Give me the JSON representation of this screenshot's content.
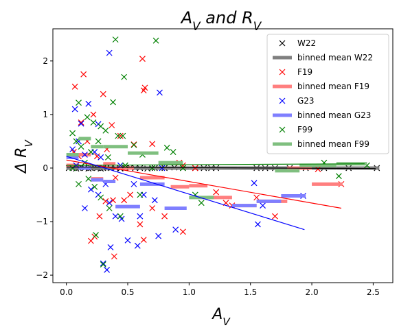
{
  "chart_data": {
    "type": "scatter",
    "title": "A_V and R_V",
    "xlabel": "A_V",
    "ylabel": "Δ R_V",
    "xlim": [
      -0.11,
      2.66
    ],
    "ylim": [
      -2.14,
      2.6
    ],
    "xticks": [
      0.0,
      0.5,
      1.0,
      1.5,
      2.0,
      2.5
    ],
    "xtick_labels": [
      "0.0",
      "0.5",
      "1.0",
      "1.5",
      "2.0",
      "2.5"
    ],
    "yticks": [
      -2,
      -1,
      0,
      1,
      2
    ],
    "ytick_labels": [
      "−2",
      "−1",
      "0",
      "1",
      "2"
    ],
    "legend_position": "upper right",
    "series": [
      {
        "name": "W22",
        "color": "#000000",
        "marker": "x",
        "points": [
          [
            0.02,
            0.0
          ],
          [
            0.05,
            0.01
          ],
          [
            0.08,
            -0.01
          ],
          [
            0.1,
            0.0
          ],
          [
            0.12,
            0.02
          ],
          [
            0.15,
            0.0
          ],
          [
            0.18,
            -0.01
          ],
          [
            0.2,
            0.0
          ],
          [
            0.23,
            0.01
          ],
          [
            0.25,
            0.0
          ],
          [
            0.28,
            -0.01
          ],
          [
            0.3,
            0.0
          ],
          [
            0.33,
            0.01
          ],
          [
            0.36,
            0.0
          ],
          [
            0.4,
            0.0
          ],
          [
            0.44,
            -0.01
          ],
          [
            0.48,
            0.0
          ],
          [
            0.52,
            0.01
          ],
          [
            0.56,
            0.0
          ],
          [
            0.6,
            0.0
          ],
          [
            0.66,
            -0.01
          ],
          [
            0.72,
            0.0
          ],
          [
            0.8,
            0.0
          ],
          [
            0.88,
            0.01
          ],
          [
            0.95,
            0.0
          ],
          [
            1.05,
            0.0
          ],
          [
            1.12,
            0.0
          ],
          [
            1.18,
            0.0
          ],
          [
            1.22,
            0.0
          ],
          [
            1.55,
            0.0
          ],
          [
            1.62,
            0.0
          ],
          [
            1.7,
            0.0
          ],
          [
            1.82,
            0.0
          ],
          [
            1.95,
            0.0
          ],
          [
            2.1,
            0.0
          ],
          [
            2.3,
            0.0
          ],
          [
            2.53,
            0.0
          ]
        ]
      },
      {
        "name": "binned mean W22",
        "color": "#808080",
        "kind": "segments",
        "segments": [
          [
            0.0,
            0.2,
            0.0
          ],
          [
            0.2,
            0.4,
            0.0
          ],
          [
            0.4,
            0.6,
            0.0
          ],
          [
            0.6,
            0.8,
            0.0
          ],
          [
            0.8,
            1.0,
            0.0
          ],
          [
            1.0,
            1.2,
            0.0
          ],
          [
            1.2,
            1.4,
            0.0
          ],
          [
            1.4,
            1.6,
            0.0
          ],
          [
            1.6,
            1.8,
            0.0
          ],
          [
            1.8,
            2.0,
            0.0
          ],
          [
            2.0,
            2.2,
            0.0
          ],
          [
            2.2,
            2.55,
            0.0
          ]
        ]
      },
      {
        "name": "F19",
        "color": "#ff0000",
        "marker": "x",
        "points": [
          [
            0.07,
            1.52
          ],
          [
            0.14,
            1.75
          ],
          [
            0.22,
            1.0
          ],
          [
            0.3,
            1.38
          ],
          [
            0.37,
            0.8
          ],
          [
            0.44,
            0.6
          ],
          [
            0.62,
            2.04
          ],
          [
            0.64,
            1.5
          ],
          [
            0.63,
            1.45
          ],
          [
            0.55,
            0.44
          ],
          [
            0.12,
            0.85
          ],
          [
            0.17,
            0.5
          ],
          [
            0.25,
            0.22
          ],
          [
            0.33,
            0.35
          ],
          [
            0.4,
            -0.18
          ],
          [
            0.47,
            -0.6
          ],
          [
            0.2,
            -1.36
          ],
          [
            0.23,
            -1.28
          ],
          [
            0.27,
            -0.9
          ],
          [
            0.32,
            -0.62
          ],
          [
            0.39,
            -1.65
          ],
          [
            0.6,
            -1.05
          ],
          [
            0.63,
            -1.34
          ],
          [
            0.7,
            -0.75
          ],
          [
            0.8,
            -0.9
          ],
          [
            0.95,
            -1.19
          ],
          [
            0.95,
            0.05
          ],
          [
            0.92,
            0.1
          ],
          [
            1.05,
            0.0
          ],
          [
            1.22,
            -0.45
          ],
          [
            1.3,
            -0.65
          ],
          [
            1.35,
            -0.7
          ],
          [
            1.55,
            -0.55
          ],
          [
            1.7,
            -0.9
          ],
          [
            2.05,
            -0.02
          ],
          [
            2.24,
            -0.3
          ],
          [
            0.06,
            0.3
          ],
          [
            0.1,
            0.22
          ],
          [
            0.38,
            -0.6
          ],
          [
            0.52,
            -0.5
          ],
          [
            0.7,
            0.45
          ]
        ]
      },
      {
        "name": "binned mean F19",
        "color": "#ff7f7f",
        "kind": "segments",
        "segments": [
          [
            0.0,
            0.1,
            0.05
          ],
          [
            0.1,
            0.2,
            0.25
          ],
          [
            0.2,
            0.3,
            -0.2
          ],
          [
            0.3,
            0.4,
            0.08
          ],
          [
            0.4,
            0.55,
            0.0
          ],
          [
            0.6,
            0.8,
            -0.18
          ],
          [
            0.85,
            1.0,
            -0.35
          ],
          [
            1.0,
            1.15,
            -0.33
          ],
          [
            1.15,
            1.35,
            -0.55
          ],
          [
            1.35,
            1.55,
            -0.7
          ],
          [
            1.55,
            1.8,
            -0.62
          ],
          [
            1.8,
            2.0,
            0.0
          ],
          [
            2.0,
            2.25,
            -0.3
          ]
        ]
      },
      {
        "name": "G23",
        "color": "#0000ff",
        "marker": "x",
        "points": [
          [
            0.35,
            2.15
          ],
          [
            0.76,
            1.41
          ],
          [
            0.07,
            1.1
          ],
          [
            0.18,
            1.2
          ],
          [
            0.12,
            0.83
          ],
          [
            0.26,
            0.82
          ],
          [
            0.05,
            0.35
          ],
          [
            0.1,
            0.5
          ],
          [
            0.15,
            0.25
          ],
          [
            0.23,
            0.3
          ],
          [
            0.28,
            0.2
          ],
          [
            0.32,
            -0.3
          ],
          [
            0.2,
            -0.4
          ],
          [
            0.26,
            -0.5
          ],
          [
            0.35,
            -0.65
          ],
          [
            0.4,
            -0.9
          ],
          [
            0.3,
            -1.78
          ],
          [
            0.33,
            -1.9
          ],
          [
            0.36,
            -1.48
          ],
          [
            0.5,
            -1.35
          ],
          [
            0.58,
            -1.45
          ],
          [
            0.63,
            -0.5
          ],
          [
            0.6,
            -0.9
          ],
          [
            0.75,
            -1.27
          ],
          [
            0.89,
            -1.15
          ],
          [
            0.72,
            -0.6
          ],
          [
            0.78,
            0.0
          ],
          [
            1.53,
            -0.28
          ],
          [
            1.56,
            -1.05
          ],
          [
            1.6,
            -0.7
          ],
          [
            1.93,
            -0.52
          ],
          [
            0.15,
            -0.75
          ],
          [
            0.45,
            -0.95
          ],
          [
            0.55,
            -0.3
          ],
          [
            0.08,
            0.05
          ],
          [
            0.44,
            0.05
          ]
        ]
      },
      {
        "name": "binned mean G23",
        "color": "#7f7fff",
        "kind": "segments",
        "segments": [
          [
            0.0,
            0.1,
            0.2
          ],
          [
            0.1,
            0.2,
            0.0
          ],
          [
            0.2,
            0.3,
            -0.22
          ],
          [
            0.3,
            0.4,
            -0.25
          ],
          [
            0.4,
            0.6,
            -0.72
          ],
          [
            0.6,
            0.8,
            -0.3
          ],
          [
            0.8,
            0.98,
            -0.75
          ],
          [
            1.35,
            1.55,
            -0.7
          ],
          [
            1.55,
            1.75,
            -0.62
          ],
          [
            1.75,
            1.95,
            -0.52
          ]
        ]
      },
      {
        "name": "F99",
        "color": "#008000",
        "marker": "x",
        "points": [
          [
            0.4,
            2.4
          ],
          [
            0.73,
            2.38
          ],
          [
            0.47,
            1.7
          ],
          [
            0.38,
            1.23
          ],
          [
            0.1,
            1.22
          ],
          [
            0.17,
            0.95
          ],
          [
            0.22,
            0.85
          ],
          [
            0.28,
            0.78
          ],
          [
            0.32,
            0.7
          ],
          [
            0.42,
            0.6
          ],
          [
            0.46,
            0.6
          ],
          [
            0.55,
            0.43
          ],
          [
            0.05,
            0.65
          ],
          [
            0.08,
            0.5
          ],
          [
            0.12,
            0.4
          ],
          [
            0.2,
            0.3
          ],
          [
            0.26,
            0.5
          ],
          [
            0.34,
            0.2
          ],
          [
            0.48,
            0.05
          ],
          [
            0.62,
            0.25
          ],
          [
            0.82,
            0.38
          ],
          [
            0.87,
            0.3
          ],
          [
            0.95,
            0.0
          ],
          [
            1.1,
            -0.65
          ],
          [
            1.05,
            -0.5
          ],
          [
            0.1,
            -0.3
          ],
          [
            0.18,
            -0.2
          ],
          [
            0.23,
            -0.35
          ],
          [
            0.28,
            -0.55
          ],
          [
            0.35,
            -0.75
          ],
          [
            0.44,
            -0.9
          ],
          [
            0.3,
            -1.8
          ],
          [
            0.24,
            -1.25
          ],
          [
            0.6,
            -0.5
          ],
          [
            2.1,
            0.1
          ],
          [
            2.22,
            -0.15
          ],
          [
            2.45,
            0.05
          ],
          [
            0.05,
            0.0
          ],
          [
            0.15,
            0.1
          ],
          [
            0.7,
            0.0
          ]
        ]
      },
      {
        "name": "binned mean F99",
        "color": "#7fbf7f",
        "kind": "segments",
        "segments": [
          [
            0.0,
            0.1,
            0.25
          ],
          [
            0.1,
            0.2,
            0.55
          ],
          [
            0.2,
            0.3,
            0.4
          ],
          [
            0.3,
            0.5,
            0.4
          ],
          [
            0.5,
            0.75,
            0.28
          ],
          [
            0.75,
            0.95,
            0.1
          ],
          [
            1.0,
            1.2,
            -0.55
          ],
          [
            1.7,
            1.9,
            -0.05
          ],
          [
            1.9,
            2.0,
            0.05
          ],
          [
            2.0,
            2.2,
            0.05
          ],
          [
            2.2,
            2.45,
            0.08
          ]
        ]
      }
    ],
    "fit_lines": [
      {
        "color": "#000000",
        "x": [
          0.0,
          2.52
        ],
        "y": [
          0.02,
          -0.01
        ]
      },
      {
        "color": "#008000",
        "x": [
          0.0,
          2.43
        ],
        "y": [
          0.05,
          0.08
        ]
      },
      {
        "color": "#ff0000",
        "x": [
          0.0,
          2.24
        ],
        "y": [
          0.15,
          -0.75
        ]
      },
      {
        "color": "#0000ff",
        "x": [
          0.0,
          1.94
        ],
        "y": [
          0.22,
          -1.15
        ]
      }
    ]
  }
}
